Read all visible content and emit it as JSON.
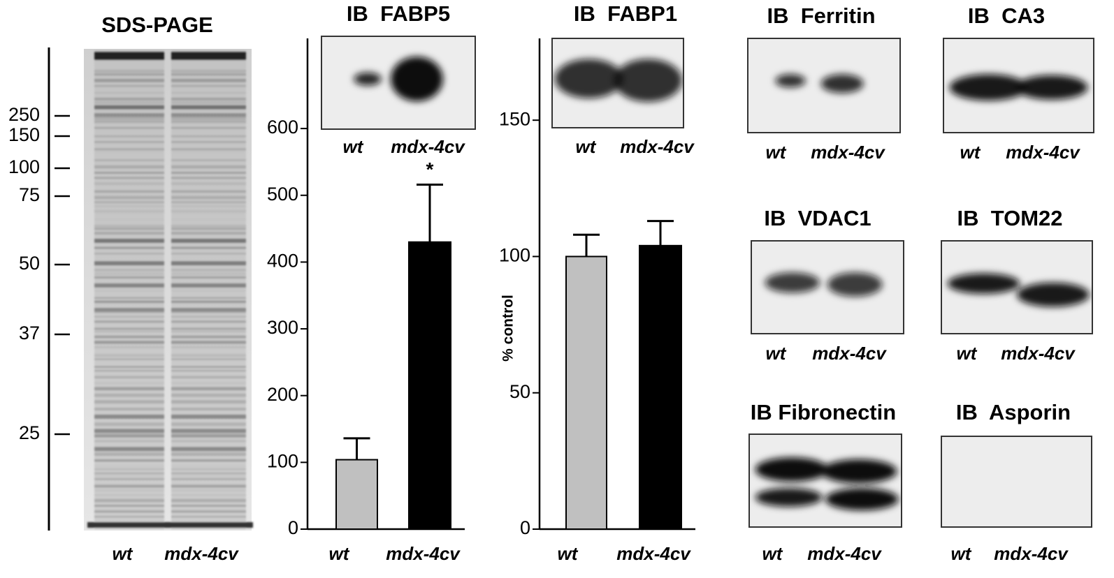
{
  "gel": {
    "title": "SDS-PAGE",
    "markers": [
      250,
      150,
      100,
      75,
      50,
      37,
      25
    ],
    "lanes": [
      "wt",
      "mdx-4cv"
    ]
  },
  "chart_data": [
    {
      "type": "bar",
      "title": "IB  FABP5",
      "blot_lanes": [
        "wt",
        "mdx-4cv"
      ],
      "categories": [
        "wt",
        "mdx-4cv"
      ],
      "values": [
        104,
        430
      ],
      "errors": [
        32,
        86
      ],
      "colors": [
        "#c0c0c0",
        "#000000"
      ],
      "ylim": [
        0,
        735
      ],
      "yticks": [
        0,
        100,
        200,
        300,
        400,
        500,
        600
      ],
      "annotation": "*"
    },
    {
      "type": "bar",
      "title": "IB  FABP1",
      "blot_lanes": [
        "wt",
        "mdx-4cv"
      ],
      "ylabel": "% control",
      "categories": [
        "wt",
        "mdx-4cv"
      ],
      "values": [
        100,
        104
      ],
      "errors": [
        8,
        9
      ],
      "colors": [
        "#c0c0c0",
        "#000000"
      ],
      "ylim": [
        0,
        180
      ],
      "yticks": [
        0,
        50,
        100,
        150
      ]
    }
  ],
  "blots": [
    {
      "title": "IB  Ferritin",
      "lanes": [
        "wt",
        "mdx-4cv"
      ]
    },
    {
      "title": "IB  CA3",
      "lanes": [
        "wt",
        "mdx-4cv"
      ]
    },
    {
      "title": "IB  VDAC1",
      "lanes": [
        "wt",
        "mdx-4cv"
      ]
    },
    {
      "title": "IB  TOM22",
      "lanes": [
        "wt",
        "mdx-4cv"
      ]
    },
    {
      "title": "IB Fibronectin",
      "lanes": [
        "wt",
        "mdx-4cv"
      ]
    },
    {
      "title": "IB  Asporin",
      "lanes": [
        "wt",
        "mdx-4cv"
      ]
    }
  ]
}
